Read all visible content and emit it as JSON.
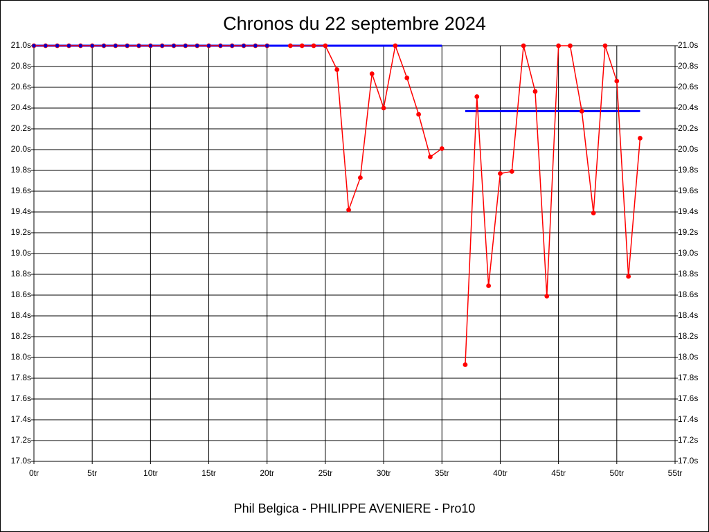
{
  "chart_data": {
    "type": "line",
    "title": "Chronos du 22 septembre 2024",
    "subtitle": "Phil Belgica - PHILIPPE AVENIERE - Pro10",
    "xlim": [
      0,
      55
    ],
    "ylim": [
      17.0,
      21.0
    ],
    "grid": true,
    "xticks": [
      {
        "value": 0,
        "label": "0tr"
      },
      {
        "value": 5,
        "label": "5tr"
      },
      {
        "value": 10,
        "label": "10tr"
      },
      {
        "value": 15,
        "label": "15tr"
      },
      {
        "value": 20,
        "label": "20tr"
      },
      {
        "value": 25,
        "label": "25tr"
      },
      {
        "value": 30,
        "label": "30tr"
      },
      {
        "value": 35,
        "label": "35tr"
      },
      {
        "value": 40,
        "label": "40tr"
      },
      {
        "value": 45,
        "label": "45tr"
      },
      {
        "value": 50,
        "label": "50tr"
      },
      {
        "value": 55,
        "label": "55tr"
      }
    ],
    "yticks": [
      {
        "value": 17.0,
        "label": "17.0s"
      },
      {
        "value": 17.2,
        "label": "17.2s"
      },
      {
        "value": 17.4,
        "label": "17.4s"
      },
      {
        "value": 17.6,
        "label": "17.6s"
      },
      {
        "value": 17.8,
        "label": "17.8s"
      },
      {
        "value": 18.0,
        "label": "18.0s"
      },
      {
        "value": 18.2,
        "label": "18.2s"
      },
      {
        "value": 18.4,
        "label": "18.4s"
      },
      {
        "value": 18.6,
        "label": "18.6s"
      },
      {
        "value": 18.8,
        "label": "18.8s"
      },
      {
        "value": 19.0,
        "label": "19.0s"
      },
      {
        "value": 19.2,
        "label": "19.2s"
      },
      {
        "value": 19.4,
        "label": "19.4s"
      },
      {
        "value": 19.6,
        "label": "19.6s"
      },
      {
        "value": 19.8,
        "label": "19.8s"
      },
      {
        "value": 20.0,
        "label": "20.0s"
      },
      {
        "value": 20.2,
        "label": "20.2s"
      },
      {
        "value": 20.4,
        "label": "20.4s"
      },
      {
        "value": 20.6,
        "label": "20.6s"
      },
      {
        "value": 20.8,
        "label": "20.8s"
      },
      {
        "value": 21.0,
        "label": "21.0s"
      }
    ],
    "series": [
      {
        "color": "#ff0000",
        "marker_color": "#0000cc",
        "x": [
          0,
          1,
          2,
          3,
          4,
          5,
          6,
          7,
          8,
          9,
          10,
          11,
          12,
          13,
          14,
          15,
          16,
          17,
          18,
          19,
          20
        ],
        "values": [
          21.0,
          21.0,
          21.0,
          21.0,
          21.0,
          21.0,
          21.0,
          21.0,
          21.0,
          21.0,
          21.0,
          21.0,
          21.0,
          21.0,
          21.0,
          21.0,
          21.0,
          21.0,
          21.0,
          21.0,
          21.0
        ]
      },
      {
        "color": "#ff0000",
        "marker_color": "#ff0000",
        "x": [
          22,
          23,
          24,
          25,
          26,
          27,
          28,
          29,
          30,
          31,
          32,
          33,
          34,
          35,
          36,
          37,
          38,
          39,
          40,
          41,
          42,
          43,
          44,
          45,
          46,
          47,
          48,
          49,
          50,
          51,
          52
        ],
        "values": [
          21.0,
          21.0,
          21.0,
          21.0,
          20.77,
          19.42,
          19.73,
          20.73,
          20.4,
          21.0,
          20.69,
          20.34,
          19.93,
          20.01,
          null,
          17.93,
          20.51,
          18.69,
          19.77,
          19.79,
          21.0,
          20.56,
          18.59,
          21.0,
          21.0,
          20.37,
          19.39,
          21.0,
          20.66,
          18.78,
          20.11
        ]
      }
    ],
    "reference_lines": [
      {
        "color": "#0000ff",
        "x": [
          0,
          35
        ],
        "y": 21.0
      },
      {
        "color": "#0000ff",
        "x": [
          37,
          52
        ],
        "y": 20.37
      }
    ]
  }
}
